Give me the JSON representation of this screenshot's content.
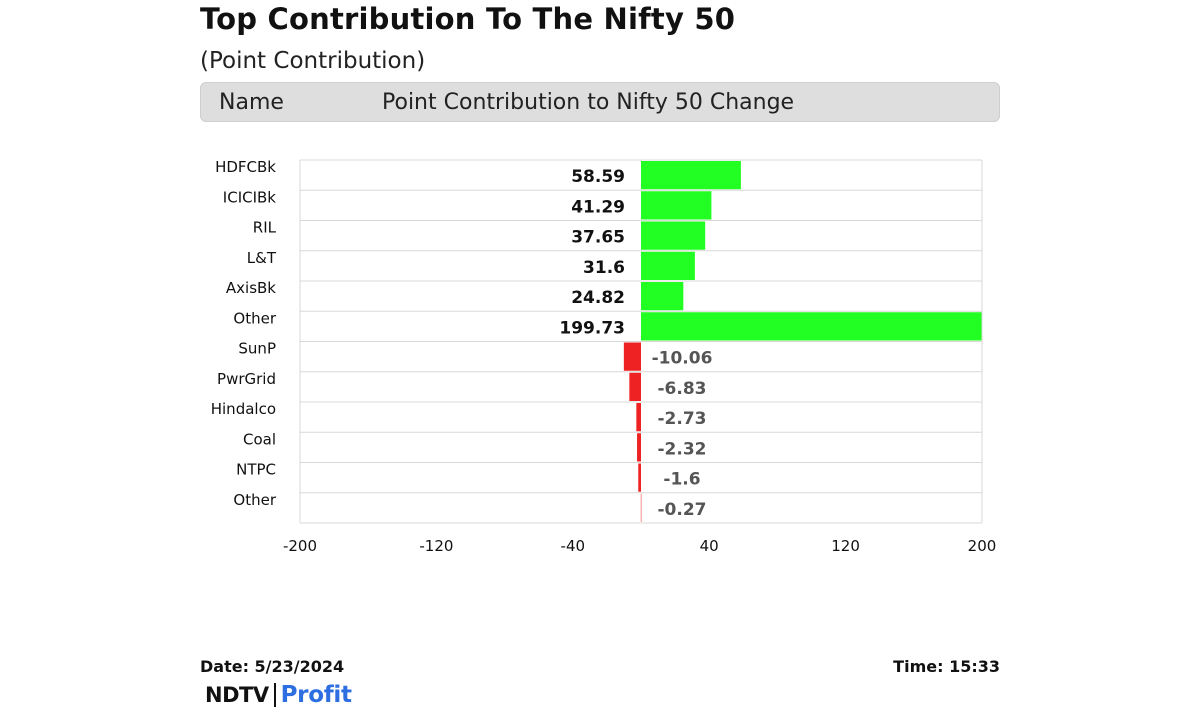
{
  "title": "Top Contribution To The Nifty 50",
  "subtitle": "(Point Contribution)",
  "header": {
    "name_label": "Name",
    "value_label": "Point Contribution to Nifty 50 Change"
  },
  "footer": {
    "date": "Date: 5/23/2024",
    "time": "Time: 15:33"
  },
  "logo": {
    "ndtv": "NDTV",
    "profit": "Profit"
  },
  "colors": {
    "positive": "#22ff22",
    "negative": "#ee2222",
    "grid": "#d8d8d8"
  },
  "chart_data": {
    "type": "bar",
    "orientation": "horizontal",
    "categories": [
      "HDFCBk",
      "ICICIBk",
      "RIL",
      "L&T",
      "AxisBk",
      "Other",
      "SunP",
      "PwrGrid",
      "Hindalco",
      "Coal",
      "NTPC",
      "Other"
    ],
    "values": [
      58.59,
      41.29,
      37.65,
      31.6,
      24.82,
      199.73,
      -10.06,
      -6.83,
      -2.73,
      -2.32,
      -1.6,
      -0.27
    ],
    "value_labels": [
      "58.59",
      "41.29",
      "37.65",
      "31.6",
      "24.82",
      "199.73",
      "-10.06",
      "-6.83",
      "-2.73",
      "-2.32",
      "-1.6",
      "-0.27"
    ],
    "xlim": [
      -200,
      200
    ],
    "xticks": [
      "-200",
      "-120",
      "-40",
      "40",
      "120",
      "200"
    ],
    "xtick_values": [
      -200,
      -120,
      -40,
      40,
      120,
      200
    ],
    "grid": true
  }
}
